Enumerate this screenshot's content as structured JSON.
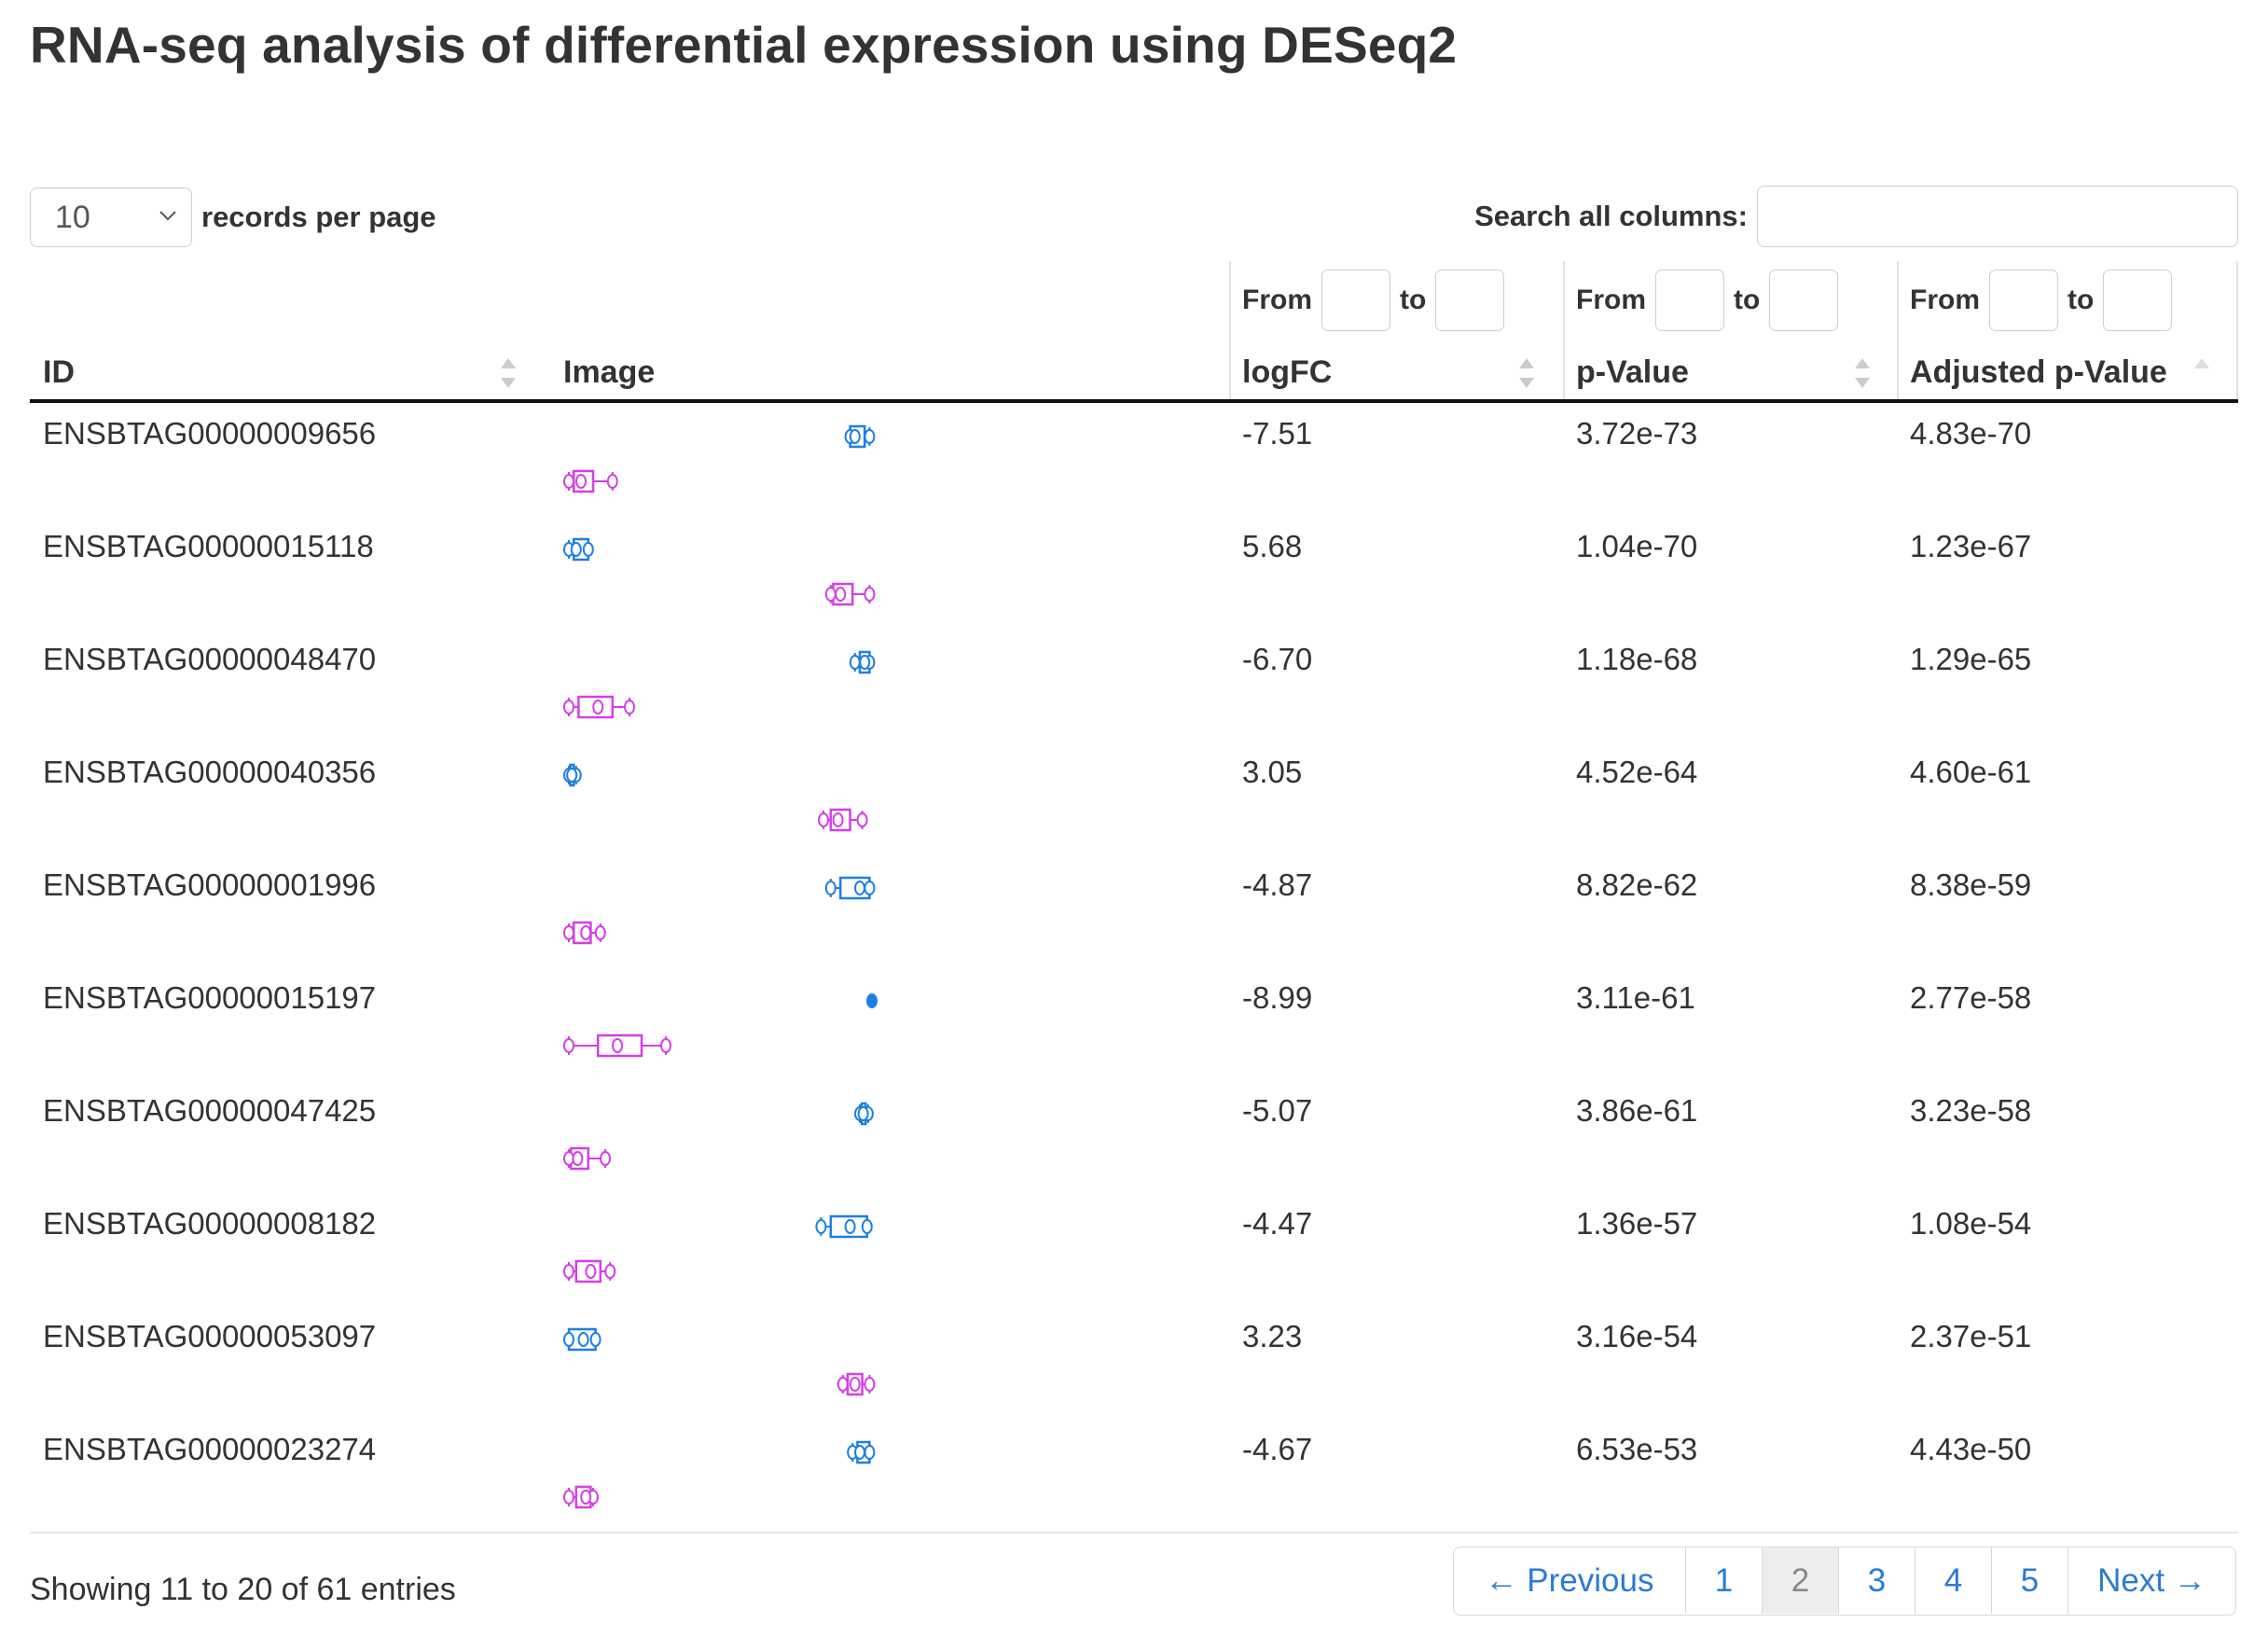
{
  "title": "RNA-seq analysis of differential expression using DESeq2",
  "length_menu": {
    "selected": "10",
    "label": "records per page",
    "chevron_icon": "chevron-down-icon"
  },
  "search": {
    "label": "Search all columns:",
    "value": ""
  },
  "filters": [
    {
      "from": "From",
      "to": "to"
    },
    {
      "from": "From",
      "to": "to"
    },
    {
      "from": "From",
      "to": "to"
    }
  ],
  "columns": [
    "ID",
    "Image",
    "logFC",
    "p-Value",
    "Adjusted p-Value"
  ],
  "colors": {
    "group1": "#1e7fe0",
    "group2": "#d43fe6",
    "link": "#2a7bd3",
    "rule": "#111111"
  },
  "rows": [
    {
      "id": "ENSBTAG00000009656",
      "logfc": "-7.51",
      "pvalue": "3.72e-73",
      "padj": "4.83e-70",
      "plot": {
        "blue": [
          0.58,
          0.58,
          0.59,
          0.61,
          0.62
        ],
        "magenta": [
          0.0,
          0.01,
          0.025,
          0.05,
          0.09
        ]
      }
    },
    {
      "id": "ENSBTAG00000015118",
      "logfc": "5.68",
      "pvalue": "1.04e-70",
      "padj": "1.23e-67",
      "plot": {
        "blue": [
          0.0,
          0.01,
          0.015,
          0.04,
          0.04
        ],
        "magenta": [
          0.54,
          0.545,
          0.56,
          0.585,
          0.62
        ]
      }
    },
    {
      "id": "ENSBTAG00000048470",
      "logfc": "-6.70",
      "pvalue": "1.18e-68",
      "padj": "1.29e-65",
      "plot": {
        "blue": [
          0.59,
          0.6,
          0.61,
          0.62,
          0.62
        ],
        "magenta": [
          0.0,
          0.02,
          0.06,
          0.09,
          0.125
        ]
      }
    },
    {
      "id": "ENSBTAG00000040356",
      "logfc": "3.05",
      "pvalue": "4.52e-64",
      "padj": "4.60e-61",
      "plot": {
        "blue": [
          0.0,
          0.003,
          0.006,
          0.01,
          0.015
        ],
        "magenta": [
          0.525,
          0.54,
          0.555,
          0.58,
          0.605
        ]
      }
    },
    {
      "id": "ENSBTAG00000001996",
      "logfc": "-4.87",
      "pvalue": "8.82e-62",
      "padj": "8.38e-59",
      "plot": {
        "blue": [
          0.54,
          0.56,
          0.6,
          0.62,
          0.62
        ],
        "magenta": [
          0.0,
          0.01,
          0.035,
          0.045,
          0.065
        ]
      }
    },
    {
      "id": "ENSBTAG00000015197",
      "logfc": "-8.99",
      "pvalue": "3.11e-61",
      "padj": "2.77e-58",
      "plot": {
        "blue": [
          0.625,
          0.625,
          0.625,
          0.625,
          0.625
        ],
        "magenta": [
          0.0,
          0.06,
          0.1,
          0.15,
          0.2
        ]
      }
    },
    {
      "id": "ENSBTAG00000047425",
      "logfc": "-5.07",
      "pvalue": "3.86e-61",
      "padj": "3.23e-58",
      "plot": {
        "blue": [
          0.6,
          0.604,
          0.607,
          0.612,
          0.617
        ],
        "magenta": [
          0.0,
          0.004,
          0.018,
          0.04,
          0.075
        ]
      }
    },
    {
      "id": "ENSBTAG00000008182",
      "logfc": "-4.47",
      "pvalue": "1.36e-57",
      "padj": "1.08e-54",
      "plot": {
        "blue": [
          0.52,
          0.54,
          0.58,
          0.615,
          0.615
        ],
        "magenta": [
          0.0,
          0.015,
          0.045,
          0.065,
          0.085
        ]
      }
    },
    {
      "id": "ENSBTAG00000053097",
      "logfc": "3.23",
      "pvalue": "3.16e-54",
      "padj": "2.37e-51",
      "plot": {
        "blue": [
          0.0,
          0.0,
          0.03,
          0.055,
          0.055
        ],
        "magenta": [
          0.565,
          0.575,
          0.59,
          0.605,
          0.62
        ]
      }
    },
    {
      "id": "ENSBTAG00000023274",
      "logfc": "-4.67",
      "pvalue": "6.53e-53",
      "padj": "4.43e-50",
      "plot": {
        "blue": [
          0.585,
          0.595,
          0.6,
          0.62,
          0.62
        ],
        "magenta": [
          0.0,
          0.015,
          0.035,
          0.045,
          0.05
        ]
      }
    }
  ],
  "info": "Showing 11 to 20 of 61 entries",
  "pagination": {
    "previous": "← Previous",
    "pages": [
      "1",
      "2",
      "3",
      "4",
      "5"
    ],
    "active": "2",
    "next": "Next →"
  }
}
